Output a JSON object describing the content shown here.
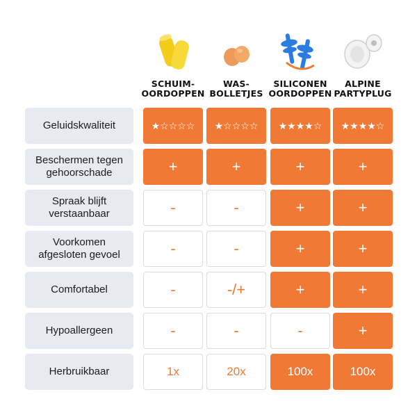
{
  "columns": [
    {
      "title_line1": "SCHUIM-",
      "title_line2": "OORDOPPEN",
      "icon": "yellow-foam-earplugs-icon"
    },
    {
      "title_line1": "WAS-",
      "title_line2": "BOLLETJES",
      "icon": "orange-wax-earplugs-icon"
    },
    {
      "title_line1": "SILICONEN",
      "title_line2": "OORDOPPEN",
      "icon": "blue-silicone-earplugs-icon"
    },
    {
      "title_line1": "ALPINE",
      "title_line2": "PARTYPLUG",
      "icon": "white-alpine-partyplug-icon"
    }
  ],
  "rows": [
    {
      "label": "Geluidskwaliteit",
      "values": [
        "★☆☆☆☆",
        "★☆☆☆☆",
        "★★★★☆",
        "★★★★☆"
      ],
      "highlighted": [
        true,
        true,
        true,
        true
      ]
    },
    {
      "label": "Beschermen tegen gehoorschade",
      "values": [
        "+",
        "+",
        "+",
        "+"
      ],
      "highlighted": [
        true,
        true,
        true,
        true
      ]
    },
    {
      "label": "Spraak blijft verstaanbaar",
      "values": [
        "-",
        "-",
        "+",
        "+"
      ],
      "highlighted": [
        false,
        false,
        true,
        true
      ]
    },
    {
      "label": "Voorkomen afgesloten gevoel",
      "values": [
        "-",
        "-",
        "+",
        "+"
      ],
      "highlighted": [
        false,
        false,
        true,
        true
      ]
    },
    {
      "label": "Comfortabel",
      "values": [
        "-",
        "-/+",
        "+",
        "+"
      ],
      "highlighted": [
        false,
        false,
        true,
        true
      ]
    },
    {
      "label": "Hypoallergeen",
      "values": [
        "-",
        "-",
        "-",
        "+"
      ],
      "highlighted": [
        false,
        false,
        false,
        true
      ]
    },
    {
      "label": "Herbruikbaar",
      "values": [
        "1x",
        "20x",
        "100x",
        "100x"
      ],
      "highlighted": [
        false,
        false,
        true,
        true
      ]
    }
  ],
  "colors": {
    "accent": "#f07a35",
    "label_bg": "#e7eaf1",
    "border": "#dcdcdc"
  }
}
